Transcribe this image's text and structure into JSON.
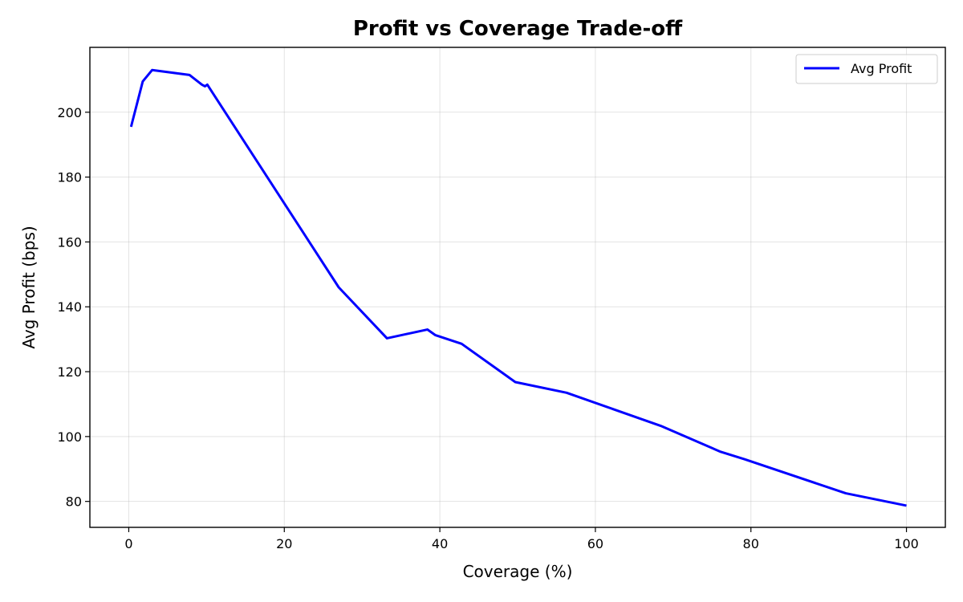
{
  "chart_data": {
    "type": "line",
    "title": "Profit vs Coverage Trade-off",
    "xlabel": "Coverage (%)",
    "ylabel": "Avg Profit (bps)",
    "xlim": [
      -5,
      105
    ],
    "ylim": [
      72,
      220
    ],
    "xticks": [
      0,
      20,
      40,
      60,
      80,
      100
    ],
    "yticks": [
      80,
      100,
      120,
      140,
      160,
      180,
      200
    ],
    "grid": true,
    "legend_position": "top-right",
    "series": [
      {
        "name": "Avg Profit",
        "color": "#0000ff",
        "x": [
          0.3,
          0.4,
          1.8,
          3.0,
          7.8,
          9.4,
          9.8,
          10.1,
          27.0,
          33.2,
          38.4,
          39.4,
          42.8,
          49.7,
          56.3,
          68.4,
          76.1,
          79.2,
          92.2,
          100.0
        ],
        "y": [
          195.5,
          196.5,
          209.5,
          213.0,
          211.5,
          208.5,
          208.0,
          208.5,
          146.0,
          130.3,
          133.0,
          131.3,
          128.6,
          116.8,
          113.5,
          103.3,
          95.3,
          93.0,
          82.5,
          78.7
        ]
      }
    ]
  }
}
